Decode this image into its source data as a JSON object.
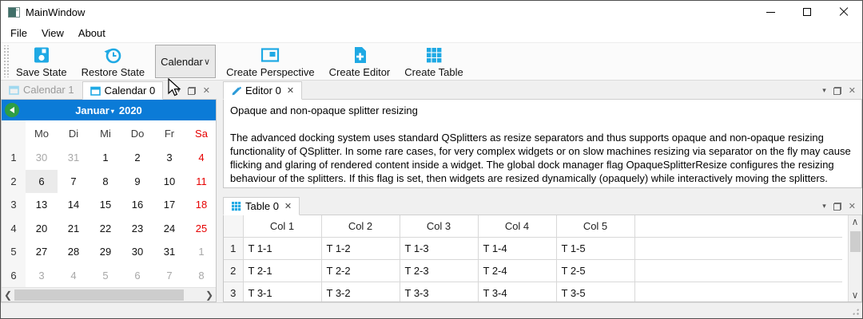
{
  "window": {
    "title": "MainWindow"
  },
  "menu": {
    "items": [
      "File",
      "View",
      "About"
    ]
  },
  "toolbar": {
    "save_label": "Save State",
    "restore_label": "Restore State",
    "combo_value": "Calendar",
    "create_perspective_label": "Create Perspective",
    "create_editor_label": "Create Editor",
    "create_table_label": "Create Table"
  },
  "calendar_panel": {
    "tabs": [
      {
        "label": "Calendar 1",
        "active": false
      },
      {
        "label": "Calendar 0",
        "active": true
      }
    ],
    "header": {
      "month": "Januar",
      "year": "2020"
    },
    "day_headers": [
      {
        "label": "Mo"
      },
      {
        "label": "Di"
      },
      {
        "label": "Mi"
      },
      {
        "label": "Do"
      },
      {
        "label": "Fr"
      },
      {
        "label": "Sa",
        "weekend": true
      }
    ],
    "weeks": [
      {
        "num": "1",
        "days": [
          {
            "d": "30",
            "muted": true
          },
          {
            "d": "31",
            "muted": true
          },
          {
            "d": "1"
          },
          {
            "d": "2"
          },
          {
            "d": "3"
          },
          {
            "d": "4",
            "weekend": true
          }
        ]
      },
      {
        "num": "2",
        "days": [
          {
            "d": "6",
            "selected": true
          },
          {
            "d": "7"
          },
          {
            "d": "8"
          },
          {
            "d": "9"
          },
          {
            "d": "10"
          },
          {
            "d": "11",
            "weekend": true
          }
        ]
      },
      {
        "num": "3",
        "days": [
          {
            "d": "13"
          },
          {
            "d": "14"
          },
          {
            "d": "15"
          },
          {
            "d": "16"
          },
          {
            "d": "17"
          },
          {
            "d": "18",
            "weekend": true
          }
        ]
      },
      {
        "num": "4",
        "days": [
          {
            "d": "20"
          },
          {
            "d": "21"
          },
          {
            "d": "22"
          },
          {
            "d": "23"
          },
          {
            "d": "24"
          },
          {
            "d": "25",
            "weekend": true
          }
        ]
      },
      {
        "num": "5",
        "days": [
          {
            "d": "27"
          },
          {
            "d": "28"
          },
          {
            "d": "29"
          },
          {
            "d": "30"
          },
          {
            "d": "31"
          },
          {
            "d": "1",
            "muted": true
          }
        ]
      },
      {
        "num": "6",
        "days": [
          {
            "d": "3",
            "muted": true
          },
          {
            "d": "4",
            "muted": true
          },
          {
            "d": "5",
            "muted": true
          },
          {
            "d": "6",
            "muted": true
          },
          {
            "d": "7",
            "muted": true
          },
          {
            "d": "8",
            "muted": true
          }
        ]
      }
    ]
  },
  "editor_panel": {
    "tab_label": "Editor 0",
    "heading": "Opaque and non-opaque splitter resizing",
    "body": "The advanced docking system uses standard QSplitters as resize separators and thus supports opaque and non-opaque resizing functionality of QSplitter. In some rare cases, for very complex widgets or on slow machines resizing via separator on the fly may cause flicking and glaring of rendered content inside a widget. The global dock manager flag OpaqueSplitterResize configures the resizing behaviour of the splitters. If this flag is set, then widgets are resized dynamically (opaquely) while interactively moving the splitters."
  },
  "table_panel": {
    "tab_label": "Table 0",
    "columns": [
      "Col 1",
      "Col 2",
      "Col 3",
      "Col 4",
      "Col 5"
    ],
    "rows": [
      {
        "header": "1",
        "cells": [
          "T 1-1",
          "T 1-2",
          "T 1-3",
          "T 1-4",
          "T 1-5"
        ]
      },
      {
        "header": "2",
        "cells": [
          "T 2-1",
          "T 2-2",
          "T 2-3",
          "T 2-4",
          "T 2-5"
        ]
      },
      {
        "header": "3",
        "cells": [
          "T 3-1",
          "T 3-2",
          "T 3-3",
          "T 3-4",
          "T 3-5"
        ]
      }
    ]
  },
  "icons": {
    "combo_chevron": "∨",
    "tab_menu": "▾",
    "close": "✕",
    "month_dropdown": "▾",
    "scroll_left": "❮",
    "scroll_right": "❯",
    "scroll_up": "∧",
    "scroll_down": "∨"
  },
  "colors": {
    "accent": "#1fa9e4",
    "calendar_header": "#0b7bd7",
    "weekend": "#e60000",
    "nav_green": "#2f9e44"
  }
}
